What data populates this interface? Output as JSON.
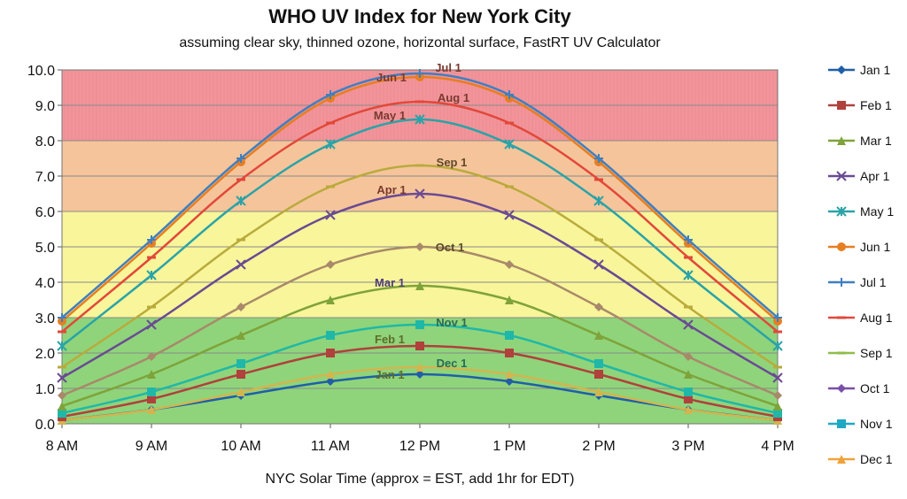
{
  "chart_data": {
    "type": "line",
    "title": "WHO UV Index for New York City",
    "subtitle": "assuming clear sky, thinned ozone, horizontal surface, FastRT UV Calculator",
    "xlabel": "NYC Solar Time (approx = EST, add 1hr for EDT)",
    "ylabel": "",
    "categories": [
      "8 AM",
      "9 AM",
      "10 AM",
      "11 AM",
      "12 PM",
      "1 PM",
      "2 PM",
      "3 PM",
      "4 PM"
    ],
    "ylim": [
      0,
      10
    ],
    "yticks": [
      "0.0",
      "1.0",
      "2.0",
      "3.0",
      "4.0",
      "5.0",
      "6.0",
      "7.0",
      "8.0",
      "9.0",
      "10.0"
    ],
    "grid": true,
    "legend_position": "right",
    "bands": [
      {
        "from": 0,
        "to": 3,
        "color": "#8fd47a"
      },
      {
        "from": 3,
        "to": 6,
        "color": "#f8f59a"
      },
      {
        "from": 6,
        "to": 8,
        "color": "#f6c49a"
      },
      {
        "from": 8,
        "to": 10,
        "color": "#f2949a"
      }
    ],
    "series": [
      {
        "name": "Jan 1",
        "color": "#1f5fa8",
        "marker": "diamond",
        "values": [
          0.1,
          0.4,
          0.8,
          1.2,
          1.4,
          1.2,
          0.8,
          0.4,
          0.1
        ],
        "annotation": "Jan 1",
        "annotation_color": "#5f6b2a"
      },
      {
        "name": "Feb 1",
        "color": "#b0413c",
        "marker": "square",
        "values": [
          0.2,
          0.7,
          1.4,
          2.0,
          2.2,
          2.0,
          1.4,
          0.7,
          0.2
        ],
        "annotation": "Feb 1",
        "annotation_color": "#5f6b2a"
      },
      {
        "name": "Mar 1",
        "color": "#7fa33a",
        "marker": "triangle",
        "values": [
          0.5,
          1.4,
          2.5,
          3.5,
          3.9,
          3.5,
          2.5,
          1.4,
          0.5
        ],
        "annotation": "Mar 1",
        "annotation_color": "#4f3d7a"
      },
      {
        "name": "Apr 1",
        "color": "#6a4a93",
        "marker": "x",
        "values": [
          1.3,
          2.8,
          4.5,
          5.9,
          6.5,
          5.9,
          4.5,
          2.8,
          1.3
        ],
        "annotation": "Apr 1",
        "annotation_color": "#7a3a30"
      },
      {
        "name": "May 1",
        "color": "#2aa3a8",
        "marker": "star",
        "values": [
          2.2,
          4.2,
          6.3,
          7.9,
          8.6,
          7.9,
          6.3,
          4.2,
          2.2
        ],
        "annotation": "May 1",
        "annotation_color": "#7a3a30"
      },
      {
        "name": "Jun 1",
        "color": "#e67e22",
        "marker": "circle",
        "values": [
          2.9,
          5.1,
          7.4,
          9.2,
          9.8,
          9.2,
          7.4,
          5.1,
          2.9
        ],
        "annotation": "Jun 1",
        "annotation_color": "#7a3a30"
      },
      {
        "name": "Jul 1",
        "color": "#3f7fc1",
        "marker": "plus",
        "values": [
          3.0,
          5.2,
          7.5,
          9.3,
          9.9,
          9.3,
          7.5,
          5.2,
          3.0
        ],
        "annotation": "Jul 1",
        "annotation_color": "#7a3a30"
      },
      {
        "name": "Aug 1",
        "color": "#e2483a",
        "marker": "dash",
        "values": [
          2.6,
          4.7,
          6.9,
          8.5,
          9.1,
          8.5,
          6.9,
          4.7,
          2.6
        ],
        "annotation": "Aug 1",
        "annotation_color": "#7a3a30"
      },
      {
        "name": "Sep 1",
        "color": "#b9ab3c",
        "marker": "dash",
        "values": [
          1.6,
          3.3,
          5.2,
          6.7,
          7.3,
          6.7,
          5.2,
          3.3,
          1.6
        ],
        "annotation": "Sep 1",
        "annotation_color": "#5f4a2a"
      },
      {
        "name": "Oct 1",
        "color": "#a8896a",
        "marker": "diamond",
        "values": [
          0.8,
          1.9,
          3.3,
          4.5,
          5.0,
          4.5,
          3.3,
          1.9,
          0.8
        ],
        "annotation": "Oct 1",
        "annotation_color": "#5f4a2a"
      },
      {
        "name": "Nov 1",
        "color": "#1fb8a8",
        "marker": "square",
        "values": [
          0.3,
          0.9,
          1.7,
          2.5,
          2.8,
          2.5,
          1.7,
          0.9,
          0.3
        ],
        "annotation": "Nov 1",
        "annotation_color": "#2a6a55"
      },
      {
        "name": "Dec 1",
        "color": "#d2b54f",
        "marker": "triangle",
        "values": [
          0.1,
          0.4,
          0.9,
          1.4,
          1.6,
          1.4,
          0.9,
          0.4,
          0.1
        ],
        "annotation": "Dec 1",
        "annotation_color": "#2a6a55"
      }
    ],
    "legend_marker_colors": {
      "Jan 1": "#1f5fa8",
      "Feb 1": "#b0413c",
      "Mar 1": "#7fa33a",
      "Apr 1": "#6a4a93",
      "May 1": "#2aa3a8",
      "Jun 1": "#e67e22",
      "Jul 1": "#3f7fc1",
      "Aug 1": "#e2483a",
      "Sep 1": "#8fbd4a",
      "Oct 1": "#7a4fa8",
      "Nov 1": "#1fa8c4",
      "Dec 1": "#f0a23a"
    }
  }
}
